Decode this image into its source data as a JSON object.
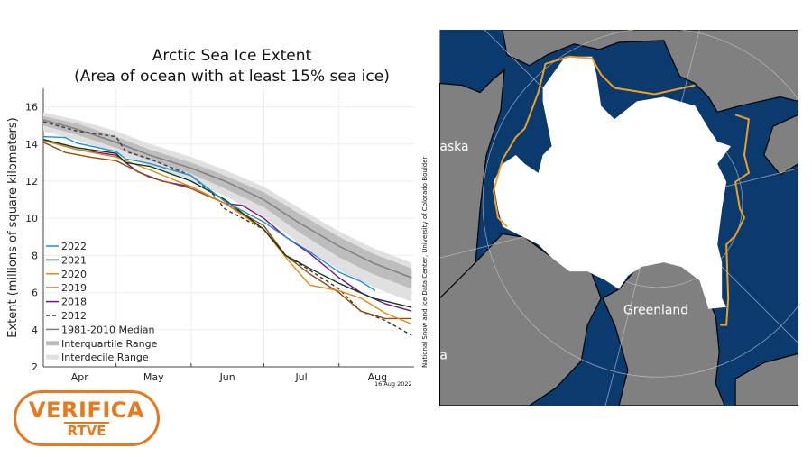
{
  "chart_data": {
    "type": "line",
    "title": "Arctic Sea Ice Extent",
    "subtitle": "(Area of ocean with at least 15% sea ice)",
    "ylabel": "Extent (millions of square kilometers)",
    "xlabel": "",
    "ylim": [
      2,
      17
    ],
    "yticks": [
      2,
      4,
      6,
      8,
      10,
      12,
      14,
      16
    ],
    "xlim": [
      "04-01",
      "08-31"
    ],
    "xticks": [
      "Apr",
      "May",
      "Jun",
      "Jul",
      "Aug"
    ],
    "grid": true,
    "legend_position": "bottom-left",
    "date_label": "16 Aug 2022",
    "credit": "National Snow and Ice Data Center, University of Colorado Boulder",
    "median": {
      "name": "1981-2010 Median",
      "color": "#7f7f7f",
      "points": [
        [
          "04-01",
          15.3
        ],
        [
          "04-15",
          14.8
        ],
        [
          "05-01",
          14.1
        ],
        [
          "05-15",
          13.4
        ],
        [
          "06-01",
          12.7
        ],
        [
          "06-15",
          12.0
        ],
        [
          "07-01",
          11.0
        ],
        [
          "07-15",
          9.8
        ],
        [
          "08-01",
          8.5
        ],
        [
          "08-15",
          7.6
        ],
        [
          "08-31",
          6.8
        ]
      ]
    },
    "interquartile": {
      "name": "Interquartile Range",
      "color": "#bdbdbd",
      "lower": [
        15.0,
        14.5,
        13.8,
        13.1,
        12.4,
        11.6,
        10.6,
        9.3,
        7.9,
        7.0,
        6.2
      ],
      "upper": [
        15.5,
        15.1,
        14.4,
        13.7,
        13.0,
        12.3,
        11.4,
        10.3,
        9.0,
        8.1,
        7.3
      ]
    },
    "interdecile": {
      "name": "Interdecile Range",
      "color": "#e0e0e0",
      "lower": [
        14.7,
        14.2,
        13.5,
        12.8,
        12.0,
        11.2,
        10.1,
        8.7,
        7.2,
        6.3,
        5.5
      ],
      "upper": [
        15.7,
        15.3,
        14.7,
        14.0,
        13.3,
        12.6,
        11.7,
        10.6,
        9.3,
        8.4,
        7.6
      ]
    },
    "series": [
      {
        "name": "2022",
        "color": "#1f8fd6",
        "dash": false,
        "points": [
          [
            "04-01",
            14.4
          ],
          [
            "04-10",
            14.35
          ],
          [
            "04-15",
            14.05
          ],
          [
            "05-01",
            13.6
          ],
          [
            "05-05",
            13.2
          ],
          [
            "05-15",
            12.95
          ],
          [
            "06-01",
            12.3
          ],
          [
            "06-10",
            11.4
          ],
          [
            "06-15",
            10.9
          ],
          [
            "07-01",
            9.8
          ],
          [
            "07-10",
            9.0
          ],
          [
            "07-20",
            8.2
          ],
          [
            "08-01",
            7.1
          ],
          [
            "08-10",
            6.6
          ],
          [
            "08-16",
            6.1
          ]
        ]
      },
      {
        "name": "2021",
        "color": "#0b3d1e",
        "dash": false,
        "points": [
          [
            "04-01",
            14.25
          ],
          [
            "04-15",
            13.8
          ],
          [
            "05-01",
            13.5
          ],
          [
            "05-05",
            13.0
          ],
          [
            "05-15",
            12.8
          ],
          [
            "06-01",
            12.0
          ],
          [
            "06-15",
            11.0
          ],
          [
            "07-01",
            9.4
          ],
          [
            "07-10",
            8.0
          ],
          [
            "07-20",
            7.3
          ],
          [
            "08-01",
            6.5
          ],
          [
            "08-15",
            5.7
          ],
          [
            "08-31",
            5.2
          ]
        ]
      },
      {
        "name": "2020",
        "color": "#e08a0b",
        "dash": false,
        "points": [
          [
            "04-01",
            14.2
          ],
          [
            "04-15",
            13.7
          ],
          [
            "05-01",
            13.3
          ],
          [
            "05-15",
            12.6
          ],
          [
            "06-01",
            11.7
          ],
          [
            "06-15",
            10.8
          ],
          [
            "07-01",
            9.4
          ],
          [
            "07-10",
            7.9
          ],
          [
            "07-20",
            6.4
          ],
          [
            "08-01",
            6.1
          ],
          [
            "08-10",
            5.7
          ],
          [
            "08-20",
            4.9
          ],
          [
            "08-31",
            4.3
          ]
        ]
      },
      {
        "name": "2019",
        "color": "#9a4a0f",
        "dash": false,
        "points": [
          [
            "04-01",
            14.1
          ],
          [
            "04-10",
            13.55
          ],
          [
            "04-20",
            13.3
          ],
          [
            "05-01",
            13.1
          ],
          [
            "05-15",
            12.2
          ],
          [
            "06-01",
            11.6
          ],
          [
            "06-15",
            10.8
          ],
          [
            "07-01",
            9.6
          ],
          [
            "07-10",
            8.0
          ],
          [
            "07-20",
            7.0
          ],
          [
            "08-01",
            6.0
          ],
          [
            "08-10",
            5.0
          ],
          [
            "08-20",
            4.6
          ],
          [
            "08-31",
            4.6
          ]
        ]
      },
      {
        "name": "2018",
        "color": "#7a0f8c",
        "dash": false,
        "points": [
          [
            "04-01",
            14.2
          ],
          [
            "04-15",
            13.7
          ],
          [
            "05-01",
            13.4
          ],
          [
            "05-10",
            12.5
          ],
          [
            "05-20",
            12.0
          ],
          [
            "06-01",
            11.7
          ],
          [
            "06-15",
            10.8
          ],
          [
            "06-22",
            10.7
          ],
          [
            "07-01",
            10.0
          ],
          [
            "07-10",
            9.0
          ],
          [
            "07-20",
            8.1
          ],
          [
            "08-01",
            6.8
          ],
          [
            "08-10",
            6.0
          ],
          [
            "08-20",
            5.4
          ],
          [
            "08-31",
            5.0
          ]
        ]
      },
      {
        "name": "2012",
        "color": "#4a3030",
        "dash": true,
        "points": [
          [
            "04-01",
            15.2
          ],
          [
            "04-15",
            14.7
          ],
          [
            "05-01",
            14.4
          ],
          [
            "05-05",
            13.6
          ],
          [
            "05-15",
            13.2
          ],
          [
            "06-01",
            12.3
          ],
          [
            "06-10",
            11.3
          ],
          [
            "06-15",
            10.5
          ],
          [
            "07-01",
            9.4
          ],
          [
            "07-10",
            8.0
          ],
          [
            "07-20",
            7.2
          ],
          [
            "08-01",
            6.2
          ],
          [
            "08-10",
            5.0
          ],
          [
            "08-20",
            4.5
          ],
          [
            "08-31",
            3.7
          ]
        ]
      }
    ]
  },
  "map": {
    "labels": [
      "aska",
      "Greenland",
      "a"
    ],
    "colors": {
      "ocean": "#0b3a6e",
      "land": "#808080",
      "ice": "#ffffff",
      "median_edge": "#f0a020"
    }
  },
  "logo": {
    "line1": "VERIFICA",
    "line2": "RTVE",
    "color": "#e8781e"
  }
}
